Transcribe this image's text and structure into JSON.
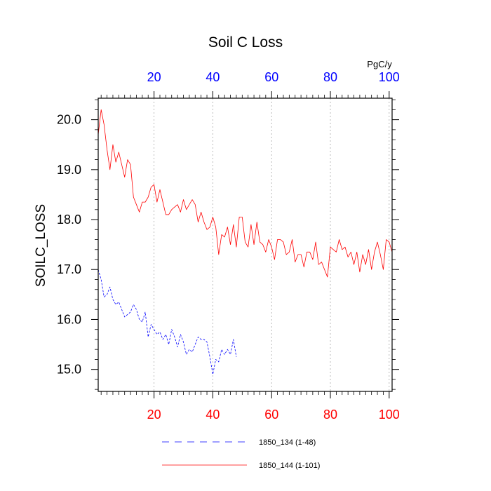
{
  "chart_data": {
    "type": "line",
    "title": "Soil C Loss",
    "ylabel": "SOILC_LOSS",
    "units": "PgC/y",
    "xlim": [
      1,
      101
    ],
    "ylim": [
      14.56,
      20.43
    ],
    "x_ticks": [
      20,
      40,
      60,
      80,
      100
    ],
    "y_ticks": [
      "15.0",
      "16.0",
      "17.0",
      "18.0",
      "19.0",
      "20.0"
    ],
    "bottom_tick_color": "#ff0000",
    "top_tick_color": "#0000ff",
    "grid": "vertical-dotted",
    "legend_position": "bottom-center",
    "series": [
      {
        "name": "1850_134 (1-48)",
        "color": "#0000ff",
        "dash": "dashed",
        "x_start": 1,
        "values": [
          17.0,
          16.8,
          16.45,
          16.5,
          16.65,
          16.4,
          16.3,
          16.35,
          16.2,
          16.05,
          16.1,
          16.15,
          16.3,
          16.2,
          16.0,
          15.95,
          16.15,
          15.65,
          15.9,
          15.8,
          15.7,
          15.75,
          15.6,
          15.7,
          15.5,
          15.8,
          15.65,
          15.45,
          15.7,
          15.55,
          15.3,
          15.4,
          15.35,
          15.5,
          15.65,
          15.6,
          15.6,
          15.55,
          15.25,
          14.9,
          15.2,
          15.15,
          15.4,
          15.3,
          15.4,
          15.3,
          15.6,
          15.25
        ]
      },
      {
        "name": "1850_144 (1-101)",
        "color": "#ff0000",
        "dash": "solid",
        "x_start": 1,
        "values": [
          19.7,
          20.2,
          19.9,
          19.4,
          19.0,
          19.5,
          19.15,
          19.35,
          19.1,
          18.85,
          19.2,
          19.1,
          18.45,
          18.3,
          18.15,
          18.35,
          18.35,
          18.45,
          18.65,
          18.7,
          18.35,
          18.6,
          18.35,
          18.1,
          18.1,
          18.2,
          18.25,
          18.3,
          18.15,
          18.4,
          18.2,
          18.3,
          18.4,
          18.3,
          17.95,
          18.15,
          17.95,
          17.8,
          17.85,
          18.05,
          17.85,
          17.3,
          17.7,
          17.65,
          17.85,
          17.5,
          17.9,
          17.45,
          18.05,
          18.05,
          17.55,
          17.45,
          17.9,
          17.5,
          17.95,
          17.55,
          17.5,
          17.35,
          17.6,
          17.45,
          17.2,
          17.6,
          17.6,
          17.55,
          17.3,
          17.35,
          17.6,
          17.15,
          17.3,
          17.3,
          17.05,
          17.35,
          17.35,
          17.2,
          17.55,
          17.1,
          17.15,
          17.0,
          16.85,
          17.45,
          17.4,
          17.35,
          17.6,
          17.4,
          17.45,
          17.25,
          17.35,
          17.1,
          17.35,
          16.95,
          17.3,
          17.1,
          17.4,
          17.0,
          17.35,
          17.55,
          17.3,
          17.0,
          17.6,
          17.55,
          17.35
        ]
      }
    ]
  }
}
